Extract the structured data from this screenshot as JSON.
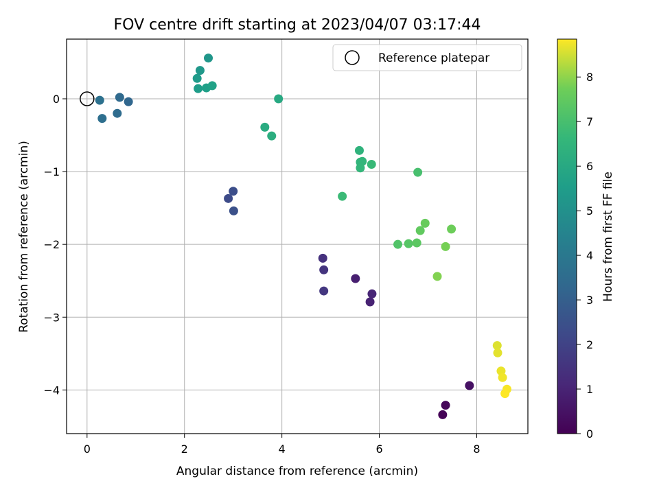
{
  "chart_data": {
    "type": "scatter",
    "title": "FOV centre drift starting at 2023/04/07 03:17:44",
    "xlabel": "Angular distance from reference (arcmin)",
    "ylabel": "Rotation from reference (arcmin)",
    "xlim": [
      -0.42,
      9.05
    ],
    "ylim": [
      -4.6,
      0.82
    ],
    "xticks": [
      0,
      2,
      4,
      6,
      8
    ],
    "yticks": [
      0,
      -1,
      -2,
      -3,
      -4
    ],
    "grid": true,
    "legend": {
      "label": "Reference platepar",
      "position": "upper right",
      "marker": "open circle"
    },
    "reference_point": {
      "x": 0,
      "y": 0
    },
    "colorbar": {
      "label": "Hours from first FF file",
      "range": [
        0,
        8.85
      ],
      "ticks": [
        0,
        1,
        2,
        3,
        4,
        5,
        6,
        7,
        8
      ],
      "colormap": "viridis"
    },
    "points": [
      {
        "x": 7.3,
        "y": -4.34,
        "hours": 0.05
      },
      {
        "x": 7.36,
        "y": -4.21,
        "hours": 0.15
      },
      {
        "x": 7.85,
        "y": -3.94,
        "hours": 0.45
      },
      {
        "x": 5.51,
        "y": -2.47,
        "hours": 0.85
      },
      {
        "x": 5.81,
        "y": -2.79,
        "hours": 0.95
      },
      {
        "x": 5.85,
        "y": -2.68,
        "hours": 1.05
      },
      {
        "x": 4.84,
        "y": -2.19,
        "hours": 1.4
      },
      {
        "x": 4.86,
        "y": -2.35,
        "hours": 1.5
      },
      {
        "x": 4.86,
        "y": -2.64,
        "hours": 1.6
      },
      {
        "x": 2.9,
        "y": -1.37,
        "hours": 2.3
      },
      {
        "x": 3.0,
        "y": -1.27,
        "hours": 2.4
      },
      {
        "x": 3.01,
        "y": -1.54,
        "hours": 2.5
      },
      {
        "x": 0.85,
        "y": -0.04,
        "hours": 3.3
      },
      {
        "x": 0.67,
        "y": 0.02,
        "hours": 3.4
      },
      {
        "x": 0.62,
        "y": -0.2,
        "hours": 3.5
      },
      {
        "x": 0.31,
        "y": -0.27,
        "hours": 3.6
      },
      {
        "x": 0.26,
        "y": -0.02,
        "hours": 3.7
      },
      {
        "x": 2.49,
        "y": 0.56,
        "hours": 5.2
      },
      {
        "x": 2.32,
        "y": 0.39,
        "hours": 5.3
      },
      {
        "x": 2.26,
        "y": 0.28,
        "hours": 5.4
      },
      {
        "x": 2.28,
        "y": 0.14,
        "hours": 5.5
      },
      {
        "x": 2.45,
        "y": 0.15,
        "hours": 5.6
      },
      {
        "x": 2.57,
        "y": 0.18,
        "hours": 5.7
      },
      {
        "x": 3.93,
        "y": 0.0,
        "hours": 6.0
      },
      {
        "x": 3.65,
        "y": -0.39,
        "hours": 6.1
      },
      {
        "x": 3.79,
        "y": -0.51,
        "hours": 6.2
      },
      {
        "x": 5.59,
        "y": -0.71,
        "hours": 6.4
      },
      {
        "x": 5.61,
        "y": -0.87,
        "hours": 6.5
      },
      {
        "x": 5.65,
        "y": -0.86,
        "hours": 6.55
      },
      {
        "x": 5.61,
        "y": -0.95,
        "hours": 6.6
      },
      {
        "x": 5.84,
        "y": -0.9,
        "hours": 6.7
      },
      {
        "x": 5.24,
        "y": -1.34,
        "hours": 6.75
      },
      {
        "x": 6.79,
        "y": -1.01,
        "hours": 7.0
      },
      {
        "x": 6.38,
        "y": -2.0,
        "hours": 7.2
      },
      {
        "x": 6.6,
        "y": -1.99,
        "hours": 7.3
      },
      {
        "x": 6.77,
        "y": -1.98,
        "hours": 7.4
      },
      {
        "x": 6.84,
        "y": -1.81,
        "hours": 7.5
      },
      {
        "x": 6.94,
        "y": -1.71,
        "hours": 7.6
      },
      {
        "x": 7.48,
        "y": -1.79,
        "hours": 7.7
      },
      {
        "x": 7.36,
        "y": -2.03,
        "hours": 7.8
      },
      {
        "x": 7.19,
        "y": -2.44,
        "hours": 7.9
      },
      {
        "x": 8.42,
        "y": -3.39,
        "hours": 8.6
      },
      {
        "x": 8.43,
        "y": -3.49,
        "hours": 8.65
      },
      {
        "x": 8.5,
        "y": -3.74,
        "hours": 8.7
      },
      {
        "x": 8.53,
        "y": -3.83,
        "hours": 8.75
      },
      {
        "x": 8.62,
        "y": -3.99,
        "hours": 8.8
      },
      {
        "x": 8.58,
        "y": -4.05,
        "hours": 8.85
      }
    ]
  }
}
